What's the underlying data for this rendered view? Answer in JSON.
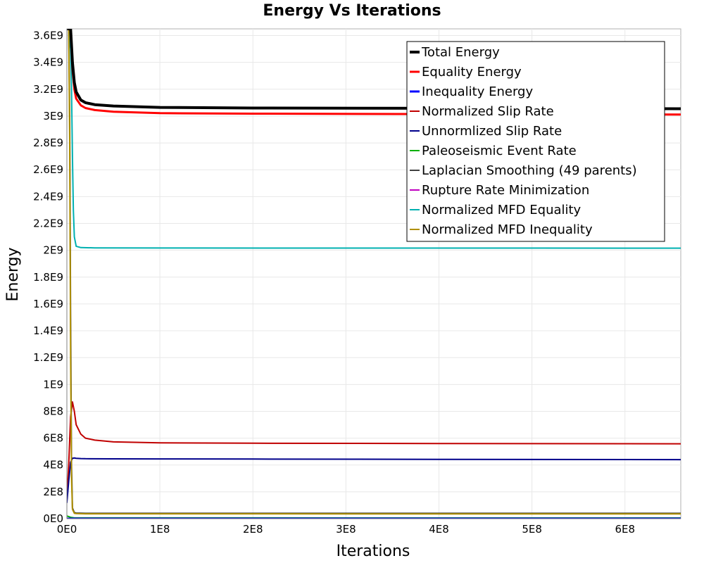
{
  "chart_data": {
    "type": "line",
    "title": "Energy Vs Iterations",
    "xlabel": "Iterations",
    "ylabel": "Energy",
    "xlim": [
      0,
      660000000
    ],
    "ylim": [
      0,
      3650000000
    ],
    "xticks": [
      {
        "value": 0,
        "label": "0E0"
      },
      {
        "value": 100000000,
        "label": "1E8"
      },
      {
        "value": 200000000,
        "label": "2E8"
      },
      {
        "value": 300000000,
        "label": "3E8"
      },
      {
        "value": 400000000,
        "label": "4E8"
      },
      {
        "value": 500000000,
        "label": "5E8"
      },
      {
        "value": 600000000,
        "label": "6E8"
      }
    ],
    "yticks": [
      {
        "value": 0,
        "label": "0E0"
      },
      {
        "value": 200000000,
        "label": "2E8"
      },
      {
        "value": 400000000,
        "label": "4E8"
      },
      {
        "value": 600000000,
        "label": "6E8"
      },
      {
        "value": 800000000,
        "label": "8E8"
      },
      {
        "value": 1000000000,
        "label": "1E9"
      },
      {
        "value": 1200000000,
        "label": "1.2E9"
      },
      {
        "value": 1400000000,
        "label": "1.4E9"
      },
      {
        "value": 1600000000,
        "label": "1.6E9"
      },
      {
        "value": 1800000000,
        "label": "1.8E9"
      },
      {
        "value": 2000000000,
        "label": "2E9"
      },
      {
        "value": 2200000000,
        "label": "2.2E9"
      },
      {
        "value": 2400000000,
        "label": "2.4E9"
      },
      {
        "value": 2600000000,
        "label": "2.6E9"
      },
      {
        "value": 2800000000,
        "label": "2.8E9"
      },
      {
        "value": 3000000000,
        "label": "3E9"
      },
      {
        "value": 3200000000,
        "label": "3.2E9"
      },
      {
        "value": 3400000000,
        "label": "3.4E9"
      },
      {
        "value": 3600000000,
        "label": "3.6E9"
      }
    ],
    "grid": true,
    "legend_position": "top-right",
    "series": [
      {
        "name": "Total Energy",
        "color": "#000000",
        "width": 4,
        "x": [
          0,
          2000000,
          4000000,
          6000000,
          8000000,
          10000000,
          15000000,
          20000000,
          30000000,
          50000000,
          100000000,
          200000000,
          400000000,
          660000000
        ],
        "y": [
          3650000000,
          3650000000,
          3650000000,
          3400000000,
          3250000000,
          3180000000,
          3120000000,
          3100000000,
          3085000000,
          3075000000,
          3065000000,
          3060000000,
          3058000000,
          3055000000
        ]
      },
      {
        "name": "Equality Energy",
        "color": "#ff0000",
        "width": 3,
        "x": [
          0,
          2000000,
          4000000,
          6000000,
          8000000,
          10000000,
          15000000,
          20000000,
          30000000,
          50000000,
          100000000,
          200000000,
          400000000,
          660000000
        ],
        "y": [
          3650000000,
          3650000000,
          3650000000,
          3350000000,
          3200000000,
          3130000000,
          3080000000,
          3060000000,
          3045000000,
          3032000000,
          3022000000,
          3018000000,
          3015000000,
          3012000000
        ]
      },
      {
        "name": "Inequality Energy",
        "color": "#0000ff",
        "width": 3,
        "x": [
          0,
          660000000
        ],
        "y": [
          0,
          0
        ]
      },
      {
        "name": "Normalized Slip Rate",
        "color": "#c00000",
        "width": 2,
        "x": [
          0,
          2000000,
          4000000,
          6000000,
          8000000,
          10000000,
          15000000,
          20000000,
          30000000,
          50000000,
          100000000,
          200000000,
          400000000,
          660000000
        ],
        "y": [
          150000000,
          400000000,
          760000000,
          870000000,
          800000000,
          700000000,
          630000000,
          600000000,
          585000000,
          572000000,
          565000000,
          562000000,
          560000000,
          558000000
        ]
      },
      {
        "name": "Unnormlized Slip Rate",
        "color": "#00008b",
        "width": 2,
        "x": [
          0,
          2000000,
          4000000,
          6000000,
          8000000,
          10000000,
          15000000,
          20000000,
          50000000,
          100000000,
          200000000,
          400000000,
          660000000
        ],
        "y": [
          120000000,
          280000000,
          420000000,
          450000000,
          452000000,
          450000000,
          448000000,
          447000000,
          446000000,
          445000000,
          444000000,
          442000000,
          440000000
        ]
      },
      {
        "name": "Paleoseismic Event Rate",
        "color": "#00b000",
        "width": 2,
        "x": [
          0,
          2000000,
          4000000,
          6000000,
          8000000,
          660000000
        ],
        "y": [
          20000000,
          15000000,
          10000000,
          8000000,
          6000000,
          5000000
        ]
      },
      {
        "name": "Laplacian Smoothing (49 parents)",
        "color": "#404040",
        "width": 2,
        "x": [
          0,
          2000000,
          3000000,
          4000000,
          5000000,
          6000000,
          8000000,
          10000000,
          20000000,
          660000000
        ],
        "y": [
          3650000000,
          3650000000,
          3000000000,
          1500000000,
          400000000,
          80000000,
          45000000,
          42000000,
          40000000,
          40000000
        ]
      },
      {
        "name": "Rupture Rate Minimization",
        "color": "#c000c0",
        "width": 2,
        "x": [
          0,
          660000000
        ],
        "y": [
          0,
          0
        ]
      },
      {
        "name": "Normalized MFD Equality",
        "color": "#00b0b0",
        "width": 2,
        "x": [
          0,
          2000000,
          4000000,
          5000000,
          6000000,
          7000000,
          8000000,
          10000000,
          15000000,
          30000000,
          100000000,
          660000000
        ],
        "y": [
          3650000000,
          3650000000,
          3500000000,
          3200000000,
          2700000000,
          2300000000,
          2100000000,
          2030000000,
          2020000000,
          2018000000,
          2017000000,
          2016000000
        ]
      },
      {
        "name": "Normalized MFD Inequality",
        "color": "#b09000",
        "width": 2,
        "x": [
          0,
          2000000,
          3000000,
          4000000,
          5000000,
          6000000,
          8000000,
          10000000,
          20000000,
          660000000
        ],
        "y": [
          3650000000,
          3650000000,
          2800000000,
          1200000000,
          300000000,
          70000000,
          40000000,
          38000000,
          36000000,
          35000000
        ]
      }
    ]
  }
}
